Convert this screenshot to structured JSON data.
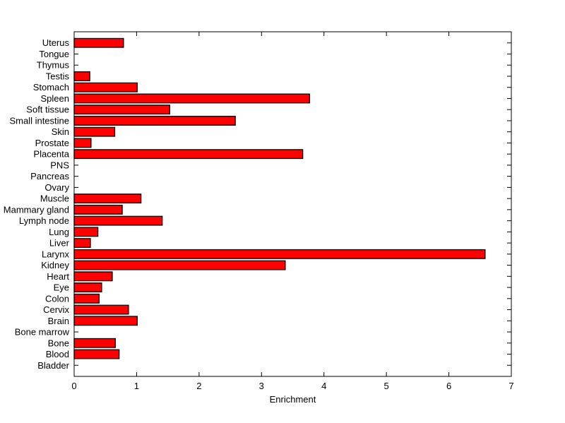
{
  "figure": {
    "background": "#ffffff"
  },
  "chart_data": {
    "type": "bar",
    "orientation": "horizontal",
    "title": "",
    "xlabel": "Enrichment",
    "ylabel": "",
    "xlim": [
      0,
      7
    ],
    "xticks": [
      0,
      1,
      2,
      3,
      4,
      5,
      6,
      7
    ],
    "xtick_labels": [
      "0",
      "1",
      "2",
      "3",
      "4",
      "5",
      "6",
      "7"
    ],
    "grid": false,
    "legend": null,
    "bar_color": "#ff0000",
    "bar_edge_color": "#000000",
    "axis_color": "#000000",
    "plot_background": "#ffffff",
    "categories": [
      "Uterus",
      "Tongue",
      "Thymus",
      "Testis",
      "Stomach",
      "Spleen",
      "Soft tissue",
      "Small intestine",
      "Skin",
      "Prostate",
      "Placenta",
      "PNS",
      "Pancreas",
      "Ovary",
      "Muscle",
      "Mammary gland",
      "Lymph node",
      "Lung",
      "Liver",
      "Larynx",
      "Kidney",
      "Heart",
      "Eye",
      "Colon",
      "Cervix",
      "Brain",
      "Bone marrow",
      "Bone",
      "Blood",
      "Bladder"
    ],
    "values": [
      0.79,
      0,
      0,
      0.25,
      1.01,
      3.77,
      1.53,
      2.58,
      0.65,
      0.27,
      3.66,
      0,
      0,
      0,
      1.07,
      0.77,
      1.41,
      0.38,
      0.26,
      6.58,
      3.38,
      0.61,
      0.44,
      0.4,
      0.87,
      1.01,
      0,
      0.66,
      0.72,
      0
    ]
  }
}
